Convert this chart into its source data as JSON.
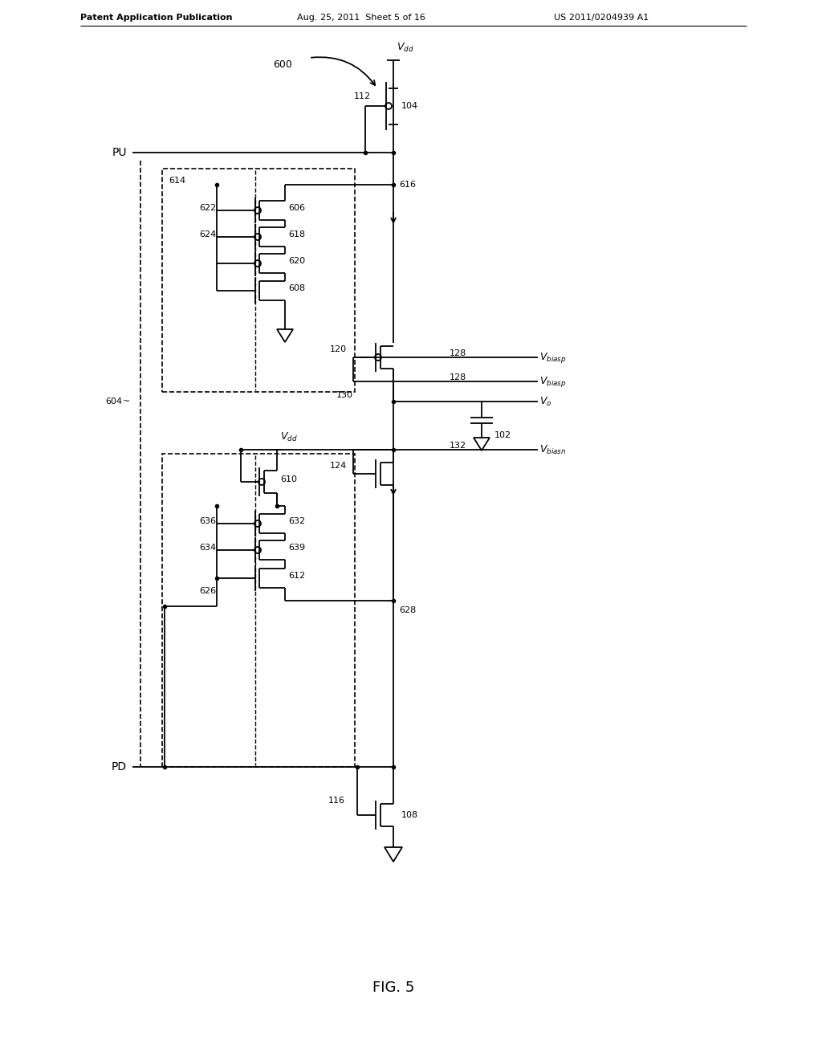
{
  "title": "FIG. 5",
  "header_left": "Patent Application Publication",
  "header_center": "Aug. 25, 2011  Sheet 5 of 16",
  "header_right": "US 2011/0204939 A1",
  "bg_color": "#ffffff",
  "line_color": "#000000",
  "label_color": "#000000",
  "lw": 1.3
}
